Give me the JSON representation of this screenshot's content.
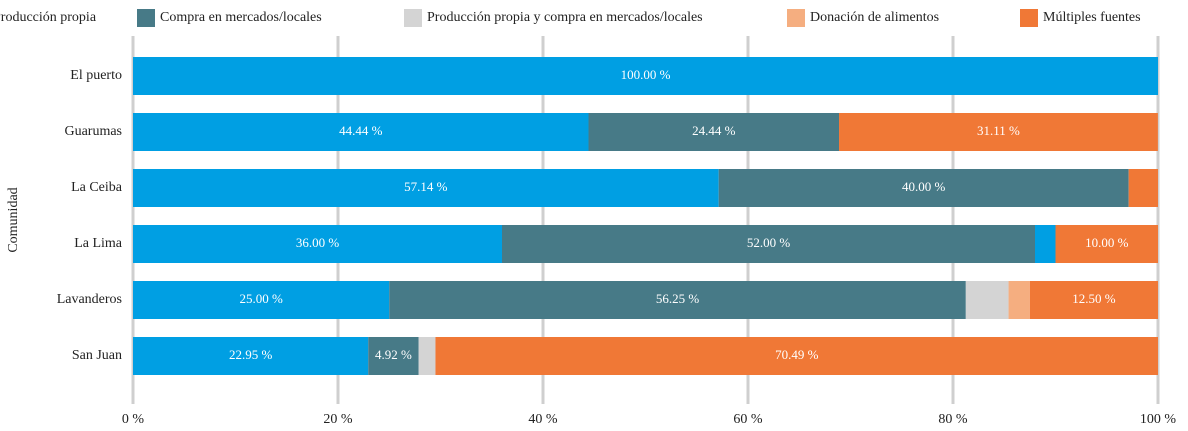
{
  "chart_data": {
    "type": "stacked_bar_horizontal",
    "y_label": "Comunidad",
    "categories": [
      "El puerto",
      "Guarumas",
      "La Ceiba",
      "La Lima",
      "Lavanderos",
      "San Juan"
    ],
    "series": [
      {
        "name": "Producción propia",
        "color": "#009fe3",
        "values": [
          100,
          44.44,
          57.14,
          36,
          25,
          22.95
        ],
        "value_labels": [
          "100.00 %",
          "44.44 %",
          "57.14 %",
          "36.00 %",
          "25.00 %",
          "22.95 %"
        ]
      },
      {
        "name": "Compra en mercados/locales",
        "color": "#477a87",
        "values": [
          0,
          24.44,
          40,
          52,
          56.25,
          4.92
        ],
        "value_labels": [
          null,
          "24.44 %",
          "40.00 %",
          "52.00 %",
          "56.25 %",
          "4.92 %"
        ]
      },
      {
        "name": null,
        "color": "#009fe3",
        "values": [
          0,
          0,
          0,
          2,
          0,
          0
        ]
      },
      {
        "name": "Producción propia y compra en mercados/locales",
        "color": "#d4d4d4",
        "values": [
          0,
          0,
          0,
          0,
          4.17,
          1.64
        ]
      },
      {
        "name": "Donación de alimentos",
        "color": "#f5ae80",
        "values": [
          0,
          0,
          0,
          0,
          2.08,
          0
        ]
      },
      {
        "name": "Múltiples fuentes",
        "color": "#f07836",
        "values": [
          0,
          31.11,
          2.86,
          10,
          12.5,
          70.49
        ],
        "value_labels": [
          null,
          "31.11 %",
          null,
          "10.00 %",
          "12.50 %",
          "70.49 %"
        ]
      }
    ],
    "xlim": [
      0,
      100
    ],
    "xticks": [
      {
        "value": 0,
        "label": "0 %"
      },
      {
        "value": 20,
        "label": "20 %"
      },
      {
        "value": 40,
        "label": "40 %"
      },
      {
        "value": 60,
        "label": "60 %"
      },
      {
        "value": 80,
        "label": "80 %"
      },
      {
        "value": 100,
        "label": "100 %"
      }
    ],
    "grid": true
  }
}
